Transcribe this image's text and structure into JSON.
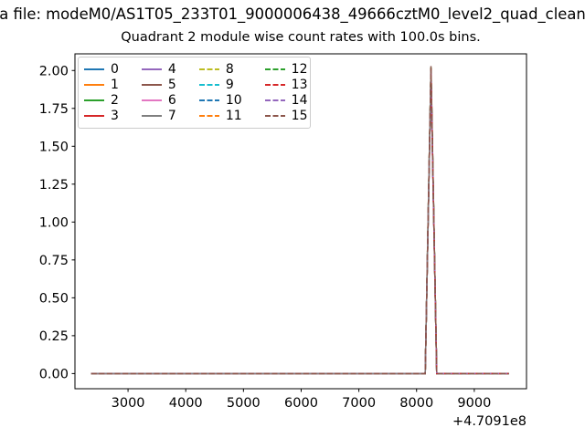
{
  "titles": {
    "file_line": "a file: modeM0/AS1T05_233T01_9000006438_49666cztM0_level2_quad_clean",
    "axes_title": "Quadrant 2 module wise count rates with 100.0s bins."
  },
  "chart_data": {
    "type": "line",
    "title": "Quadrant 2 module wise count rates with 100.0s bins.",
    "xlabel": "",
    "ylabel": "",
    "x_offset_label": "+4.7091e8",
    "xlim": [
      2080,
      9905
    ],
    "ylim": [
      -0.1,
      2.11
    ],
    "xticks": [
      3000,
      4000,
      5000,
      6000,
      7000,
      8000,
      9000
    ],
    "ytick_labels": [
      "0.00",
      "0.25",
      "0.50",
      "0.75",
      "1.00",
      "1.25",
      "1.50",
      "1.75",
      "2.00"
    ],
    "grid": false,
    "legend_position": "upper left",
    "legend_ncol": 4,
    "bin_size_seconds": 100.0,
    "x": [
      2360,
      8150,
      8250,
      8350,
      9600
    ],
    "series": [
      {
        "name": "0",
        "color": "#1f77b4",
        "linestyle": "solid",
        "values": [
          0,
          0,
          1.99,
          0,
          0
        ]
      },
      {
        "name": "1",
        "color": "#ff7f0e",
        "linestyle": "solid",
        "values": [
          0,
          0,
          1.98,
          0,
          0
        ]
      },
      {
        "name": "2",
        "color": "#2ca02c",
        "linestyle": "solid",
        "values": [
          0,
          0,
          2.02,
          0,
          0
        ]
      },
      {
        "name": "3",
        "color": "#d62728",
        "linestyle": "solid",
        "values": [
          0,
          0,
          2.015,
          0,
          0
        ]
      },
      {
        "name": "4",
        "color": "#9467bd",
        "linestyle": "solid",
        "values": [
          0,
          0,
          1.97,
          0,
          0
        ]
      },
      {
        "name": "5",
        "color": "#8c564b",
        "linestyle": "solid",
        "values": [
          0,
          0,
          1.99,
          0,
          0
        ]
      },
      {
        "name": "6",
        "color": "#e377c2",
        "linestyle": "solid",
        "values": [
          0,
          0,
          1.98,
          0,
          0
        ]
      },
      {
        "name": "7",
        "color": "#7f7f7f",
        "linestyle": "solid",
        "values": [
          0,
          0,
          1.985,
          0,
          0
        ]
      },
      {
        "name": "8",
        "color": "#bcbd22",
        "linestyle": "dashed",
        "values": [
          0,
          0,
          2.0,
          0,
          0
        ]
      },
      {
        "name": "9",
        "color": "#17becf",
        "linestyle": "dashed",
        "values": [
          0,
          0,
          2.005,
          0,
          0
        ]
      },
      {
        "name": "10",
        "color": "#1f77b4",
        "linestyle": "dashed",
        "values": [
          0,
          0,
          1.99,
          0,
          0
        ]
      },
      {
        "name": "11",
        "color": "#ff7f0e",
        "linestyle": "dashed",
        "values": [
          0,
          0,
          1.995,
          0,
          0
        ]
      },
      {
        "name": "12",
        "color": "#2ca02c",
        "linestyle": "dashed",
        "values": [
          0,
          0,
          2.02,
          0,
          0
        ]
      },
      {
        "name": "13",
        "color": "#d62728",
        "linestyle": "dashed",
        "values": [
          0,
          0,
          2.015,
          0,
          0
        ]
      },
      {
        "name": "14",
        "color": "#9467bd",
        "linestyle": "dashed",
        "values": [
          0,
          0,
          2.0,
          0,
          0
        ]
      },
      {
        "name": "15",
        "color": "#8c564b",
        "linestyle": "dashed",
        "values": [
          0,
          0,
          2.03,
          0,
          0
        ]
      }
    ]
  }
}
